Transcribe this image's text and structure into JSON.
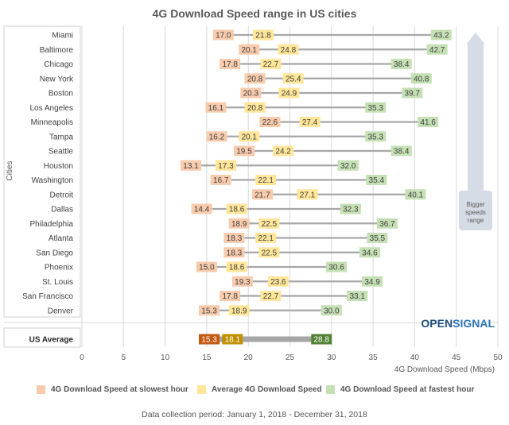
{
  "chart_data": {
    "type": "range-dot",
    "title": "4G Download Speed range in US cities",
    "xlabel": "4G Download Speed (Mbps)",
    "ylabel": "Cities",
    "xlim": [
      0,
      50
    ],
    "xticks": [
      0,
      5,
      10,
      15,
      20,
      25,
      30,
      35,
      40,
      45,
      50
    ],
    "series": [
      {
        "name": "4G Download Speed at slowest hour",
        "color": "#f8cbad",
        "key": "slowest"
      },
      {
        "name": "Average 4G Download Speed",
        "color": "#ffe699",
        "key": "average"
      },
      {
        "name": "4G Download Speed at fastest hour",
        "color": "#c5e0b4",
        "key": "fastest"
      }
    ],
    "cities": [
      {
        "name": "Miami",
        "slowest": 17.0,
        "average": 21.8,
        "fastest": 43.2
      },
      {
        "name": "Baltimore",
        "slowest": 20.1,
        "average": 24.8,
        "fastest": 42.7
      },
      {
        "name": "Chicago",
        "slowest": 17.8,
        "average": 22.7,
        "fastest": 38.4
      },
      {
        "name": "New York",
        "slowest": 20.8,
        "average": 25.4,
        "fastest": 40.8
      },
      {
        "name": "Boston",
        "slowest": 20.3,
        "average": 24.9,
        "fastest": 39.7
      },
      {
        "name": "Los Angeles",
        "slowest": 16.1,
        "average": 20.8,
        "fastest": 35.3
      },
      {
        "name": "Minneapolis",
        "slowest": 22.6,
        "average": 27.4,
        "fastest": 41.6
      },
      {
        "name": "Tampa",
        "slowest": 16.2,
        "average": 20.1,
        "fastest": 35.3
      },
      {
        "name": "Seattle",
        "slowest": 19.5,
        "average": 24.2,
        "fastest": 38.4
      },
      {
        "name": "Houston",
        "slowest": 13.1,
        "average": 17.3,
        "fastest": 32.0
      },
      {
        "name": "Washington",
        "slowest": 16.7,
        "average": 22.1,
        "fastest": 35.4
      },
      {
        "name": "Detroit",
        "slowest": 21.7,
        "average": 27.1,
        "fastest": 40.1
      },
      {
        "name": "Dallas",
        "slowest": 14.4,
        "average": 18.6,
        "fastest": 32.3
      },
      {
        "name": "Philadelphia",
        "slowest": 18.9,
        "average": 22.5,
        "fastest": 36.7
      },
      {
        "name": "Atlanta",
        "slowest": 18.3,
        "average": 22.1,
        "fastest": 35.5
      },
      {
        "name": "San Diego",
        "slowest": 18.3,
        "average": 22.5,
        "fastest": 34.6
      },
      {
        "name": "Phoenix",
        "slowest": 15.0,
        "average": 18.6,
        "fastest": 30.6
      },
      {
        "name": "St. Louis",
        "slowest": 19.3,
        "average": 23.6,
        "fastest": 34.9
      },
      {
        "name": "San Francisco",
        "slowest": 17.8,
        "average": 22.7,
        "fastest": 33.1
      },
      {
        "name": "Denver",
        "slowest": 15.3,
        "average": 18.9,
        "fastest": 30.0
      }
    ],
    "us_average": {
      "name": "US Average",
      "slowest": 15.3,
      "average": 18.1,
      "fastest": 28.8,
      "colors": {
        "slowest": "#c55a11",
        "average": "#bf9000",
        "fastest": "#548235"
      }
    },
    "annotation": {
      "lines": [
        "Bigger",
        "speeds",
        "range"
      ]
    },
    "brand": {
      "prefix": "OPEN",
      "suffix": "SIGNAL"
    }
  },
  "footnote": "Data collection period: January 1, 2018 - December 31, 2018"
}
